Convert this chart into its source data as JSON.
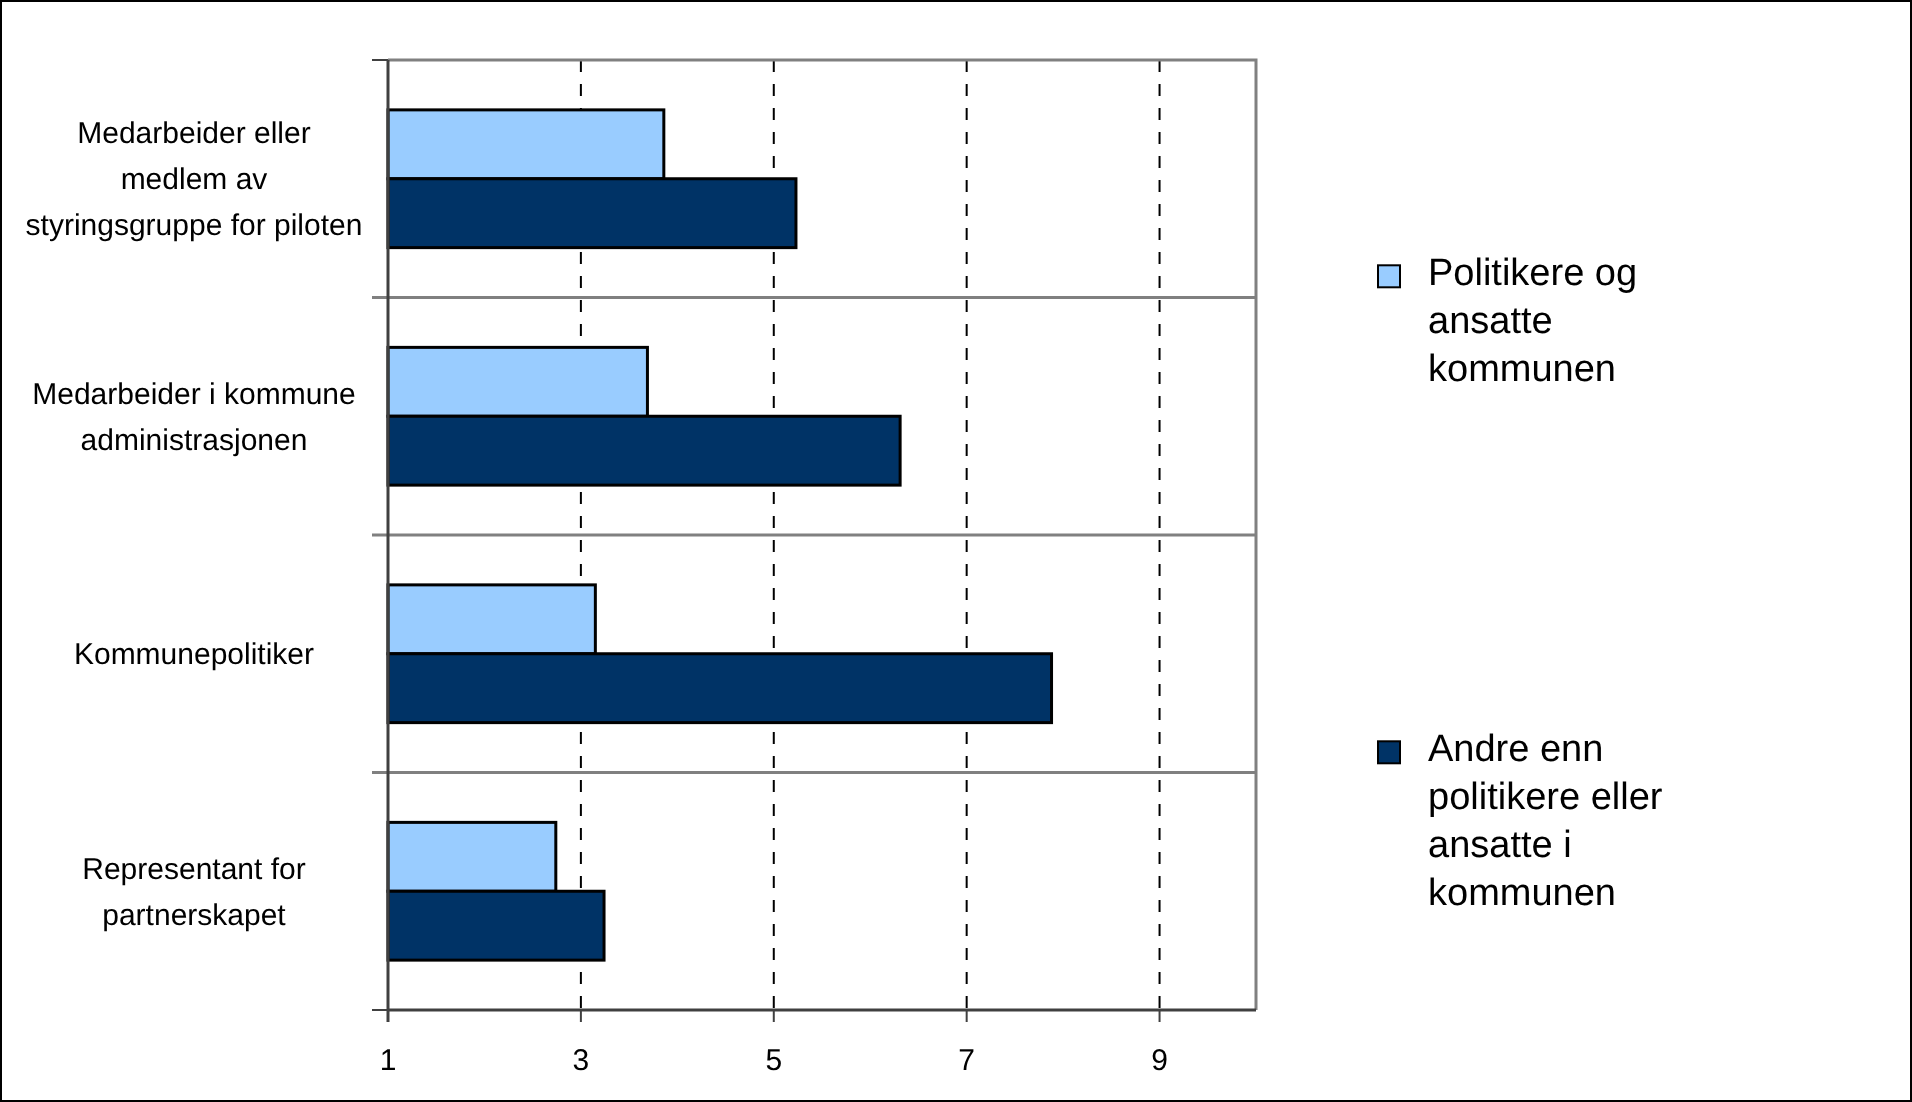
{
  "chart_data": {
    "type": "bar",
    "orientation": "horizontal",
    "categories": [
      "Medarbeider eller medlem av styringsgruppe for piloten",
      "Medarbeider i kommune administrasjonen",
      "Kommunepolitiker",
      "Representant for partnerskapet"
    ],
    "series": [
      {
        "name": "Politikere og ansatte kommunen",
        "color": "#99ccff",
        "values": [
          3.86,
          3.69,
          3.15,
          2.74
        ]
      },
      {
        "name": "Andre enn politikere eller ansatte i kommunen",
        "color": "#003366",
        "values": [
          5.23,
          6.31,
          7.88,
          3.24
        ]
      }
    ],
    "xlim": [
      1,
      10
    ],
    "xticks": [
      1,
      3,
      5,
      7,
      9
    ],
    "grid": "x",
    "line_style": "dashed",
    "legend": "right"
  }
}
